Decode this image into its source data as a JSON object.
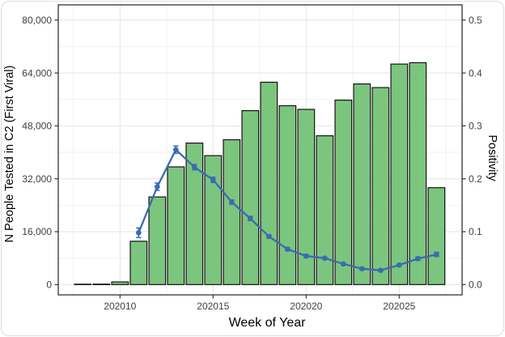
{
  "figure": {
    "description": "Dual-axis weekly chart: green bars of people tested with blue positivity line and error bars"
  },
  "chart_data": {
    "type": "bar",
    "x": [
      202008,
      202009,
      202010,
      202011,
      202012,
      202013,
      202014,
      202015,
      202016,
      202017,
      202018,
      202019,
      202020,
      202021,
      202022,
      202023,
      202024,
      202025,
      202026,
      202027
    ],
    "series": [
      {
        "name": "N People Tested in C2 (First Viral)",
        "type": "bar",
        "axis": "left",
        "values": [
          120,
          150,
          800,
          13100,
          26500,
          35600,
          42800,
          39000,
          43800,
          52600,
          61200,
          54100,
          53000,
          45000,
          55800,
          60700,
          59600,
          66700,
          67100,
          29300
        ]
      },
      {
        "name": "Positivity",
        "type": "line",
        "axis": "right",
        "values": [
          null,
          null,
          null,
          0.098,
          0.185,
          0.255,
          0.222,
          0.198,
          0.156,
          0.125,
          0.091,
          0.067,
          0.054,
          0.05,
          0.039,
          0.03,
          0.027,
          0.037,
          0.049,
          0.057
        ],
        "errors": [
          null,
          null,
          null,
          0.009,
          0.007,
          0.007,
          0.005,
          0.005,
          0.004,
          0.004,
          0.003,
          0.003,
          0.003,
          0.002,
          0.002,
          0.002,
          0.002,
          0.002,
          0.003,
          0.004
        ]
      }
    ],
    "title": "",
    "xlabel": "Week of Year",
    "ylabel_left": "N People Tested in C2 (First Viral)",
    "ylabel_right": "Positivity",
    "ylim_left": [
      0,
      80000
    ],
    "ylim_right": [
      0,
      0.5
    ],
    "x_major_ticks": [
      202010,
      202015,
      202020,
      202025
    ],
    "x_major_tick_labels": [
      "202010",
      "202015",
      "202020",
      "202025"
    ],
    "left_tick_values": [
      0,
      16000,
      32000,
      48000,
      64000,
      80000
    ],
    "left_tick_labels": [
      "0",
      "16,000",
      "32,000",
      "48,000",
      "64,000",
      "80,000"
    ],
    "right_tick_values": [
      0,
      0.1,
      0.2,
      0.3,
      0.4,
      0.5
    ],
    "right_tick_labels": [
      "0.0",
      "0.1",
      "0.2",
      "0.3",
      "0.4",
      "0.5"
    ],
    "grid": "major and minor, light grey, on white panel",
    "legend": "none"
  },
  "colors": {
    "bar_fill": "#7cc57e",
    "bar_stroke": "#141414",
    "line": "#3a6cb0",
    "grid_major": "#e4e4e4",
    "grid_minor": "#f1f1f1",
    "panel_border": "#333333",
    "tick_mark": "#333333",
    "tick_text": "#404040",
    "title_text": "#000000",
    "card_border": "#dcdcdc",
    "background": "#ffffff"
  }
}
